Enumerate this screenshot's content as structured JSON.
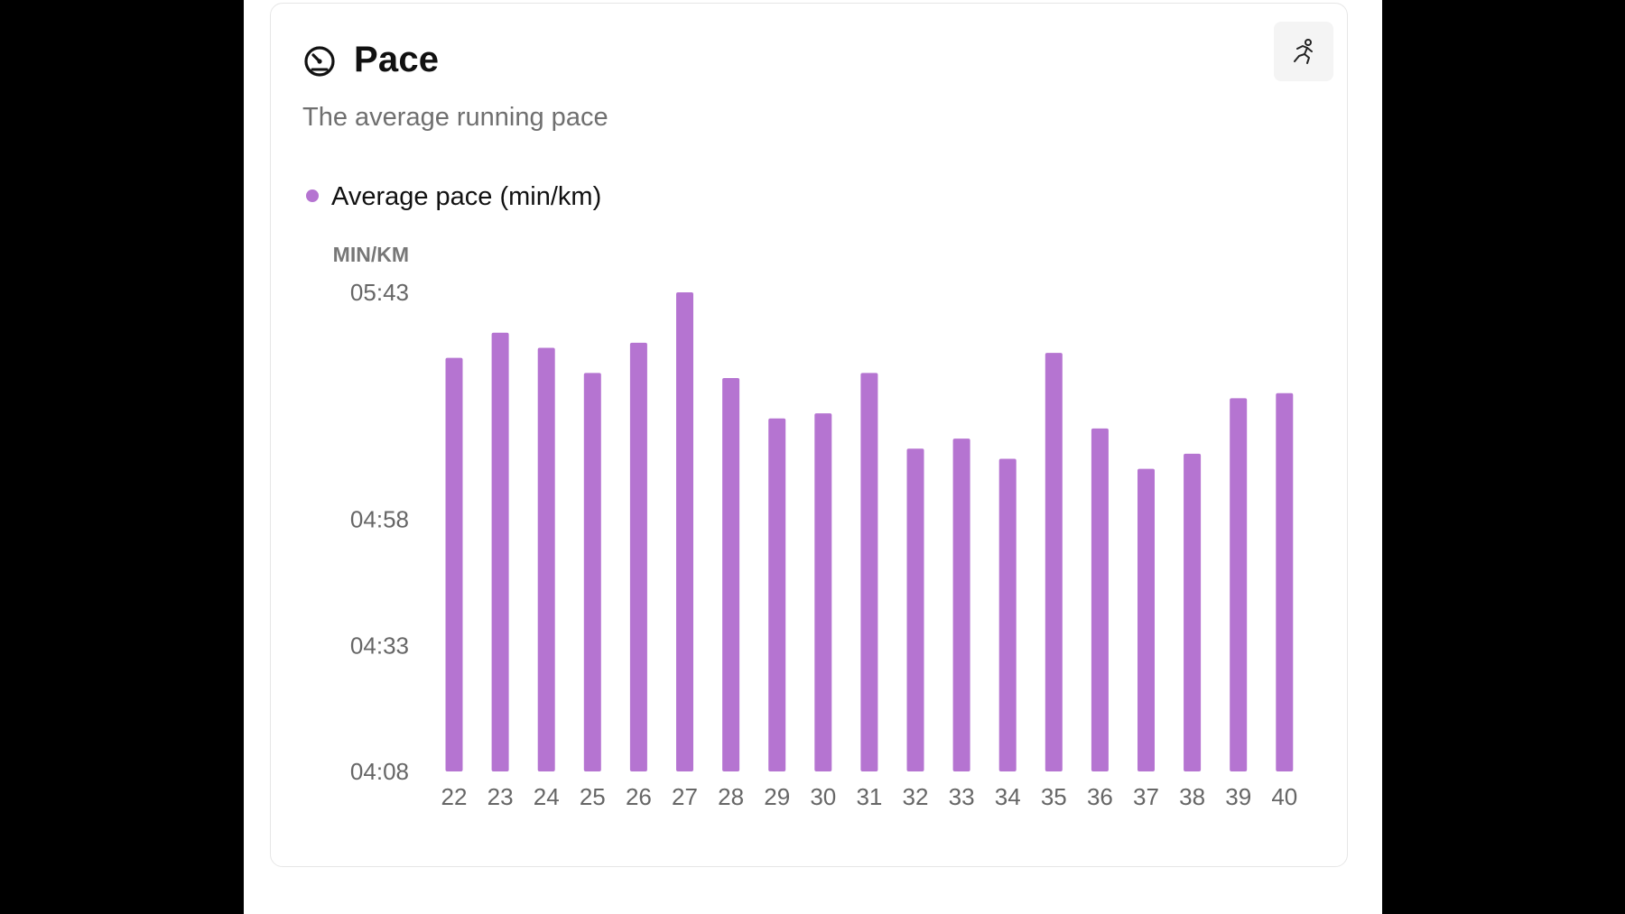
{
  "card": {
    "title": "Pace",
    "subtitle": "The average running pace",
    "title_icon": "gauge-icon",
    "action_icon": "runner-icon"
  },
  "colors": {
    "bar": "#b574d1",
    "legend_dot": "#b574d1"
  },
  "chart_data": {
    "type": "bar",
    "title": "",
    "xlabel": "",
    "ylabel": "MIN/KM",
    "legend": [
      "Average pace (min/km)"
    ],
    "legend_placement": "top-left",
    "grid": false,
    "ylim_seconds": [
      248,
      343
    ],
    "yticks": [
      {
        "label": "05:43",
        "seconds": 343
      },
      {
        "label": "04:58",
        "seconds": 298
      },
      {
        "label": "04:33",
        "seconds": 273
      },
      {
        "label": "04:08",
        "seconds": 248
      }
    ],
    "categories": [
      "22",
      "23",
      "24",
      "25",
      "26",
      "27",
      "28",
      "29",
      "30",
      "31",
      "32",
      "33",
      "34",
      "35",
      "36",
      "37",
      "38",
      "39",
      "40"
    ],
    "series": [
      {
        "name": "Average pace (min/km)",
        "values_seconds": [
          330,
          335,
          332,
          327,
          333,
          343,
          326,
          318,
          319,
          327,
          312,
          314,
          310,
          331,
          316,
          308,
          311,
          322,
          323
        ]
      }
    ]
  }
}
